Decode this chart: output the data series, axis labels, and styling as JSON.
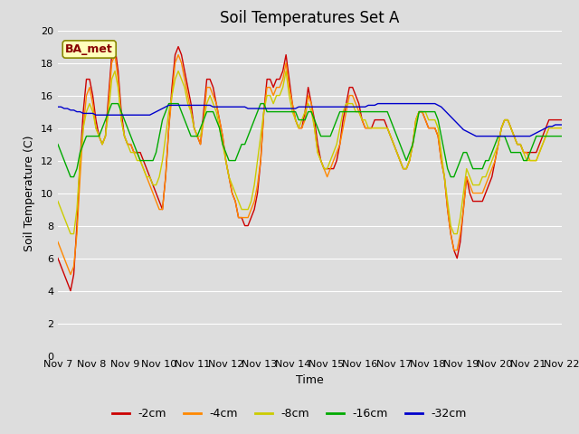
{
  "title": "Soil Temperatures Set A",
  "xlabel": "Time",
  "ylabel": "Soil Temperature (C)",
  "ylim": [
    0,
    20
  ],
  "yticks": [
    0,
    2,
    4,
    6,
    8,
    10,
    12,
    14,
    16,
    18,
    20
  ],
  "xtick_labels": [
    "Nov 7",
    "Nov 8",
    "Nov 9",
    "Nov 10",
    "Nov 11",
    "Nov 12",
    "Nov 13",
    "Nov 14",
    "Nov 15",
    "Nov 16",
    "Nov 17",
    "Nov 18",
    "Nov 19",
    "Nov 20",
    "Nov 21",
    "Nov 22"
  ],
  "legend_labels": [
    "-2cm",
    "-4cm",
    "-8cm",
    "-16cm",
    "-32cm"
  ],
  "line_colors": [
    "#cc0000",
    "#ff8800",
    "#cccc00",
    "#00aa00",
    "#0000cc"
  ],
  "annotation_text": "BA_met",
  "annotation_facecolor": "#ffffbb",
  "annotation_edgecolor": "#888800",
  "annotation_textcolor": "#880000",
  "bg_color": "#dddddd",
  "grid_color": "#ffffff",
  "title_fontsize": 12,
  "axis_fontsize": 9,
  "tick_fontsize": 8
}
